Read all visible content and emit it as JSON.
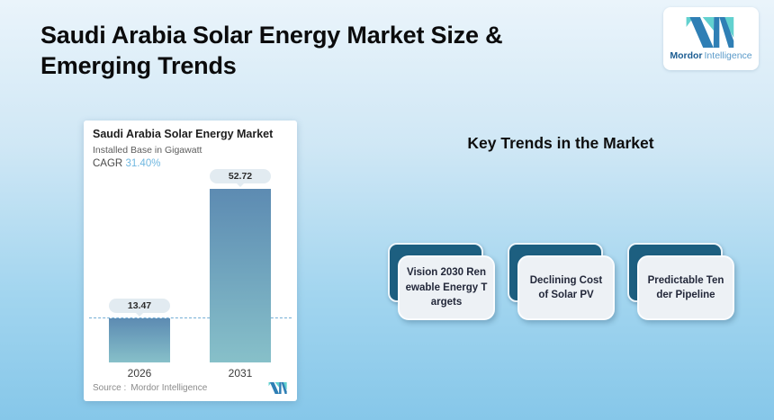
{
  "page": {
    "title_line1": "Saudi Arabia Solar Energy Market Size &",
    "title_line2": "Emerging Trends"
  },
  "brand": {
    "name_bold": "Mordor",
    "name_light": "Intelligence"
  },
  "chart": {
    "title": "Saudi Arabia Solar Energy Market",
    "subtitle": "Installed Base in Gigawatt",
    "cagr_label": "CAGR",
    "cagr_value": "31.40%",
    "bars": [
      {
        "year": "2026",
        "value": "13.47"
      },
      {
        "year": "2031",
        "value": "52.72"
      }
    ],
    "source_label": "Source :",
    "source_value": "Mordor Intelligence"
  },
  "trends": {
    "heading": "Key Trends in the Market",
    "cards": [
      {
        "lines": [
          "Vision 2030 Ren",
          "ewable Energy T",
          "argets"
        ]
      },
      {
        "lines": [
          "Declining Cost",
          "of Solar PV"
        ]
      },
      {
        "lines": [
          "Predictable Ten",
          "der Pipeline"
        ]
      }
    ]
  },
  "colors": {
    "background_top": "#eaf4fb",
    "background_bottom": "#86c7e9",
    "bar_gradient_top": "#5d8bb2",
    "bar_gradient_bottom": "#87c0c9",
    "cagr_accent": "#6fb7e0",
    "dashed_line": "#74aed6",
    "trend_card_dark": "#1d5f80",
    "trend_card_light": "#edf1f5",
    "logo_blue": "#2f7fb5",
    "logo_teal": "#62d1cf"
  },
  "chart_data": {
    "type": "bar",
    "title": "Saudi Arabia Solar Energy Market",
    "subtitle": "Installed Base in Gigawatt",
    "categories": [
      "2026",
      "2031"
    ],
    "values": [
      13.47,
      52.72
    ],
    "data_labels": [
      "13.47",
      "52.72"
    ],
    "cagr": "31.40%",
    "xlabel": "",
    "ylabel": "Installed Base in Gigawatt",
    "ylim": [
      0,
      55
    ],
    "grid": false,
    "legend": false,
    "reference_line": 13.47,
    "source": "Mordor Intelligence"
  }
}
